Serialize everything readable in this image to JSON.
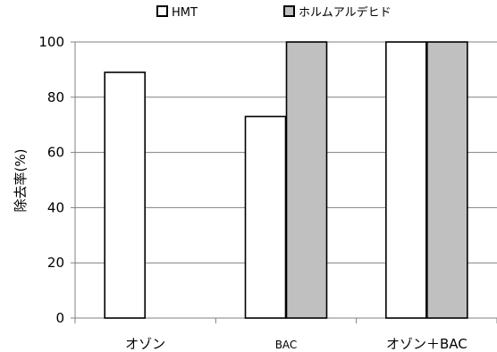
{
  "chart_data": {
    "type": "bar",
    "title": "",
    "xlabel": "",
    "ylabel": "除去率(%)",
    "categories": [
      "オゾン",
      "BAC",
      "オゾン＋BAC"
    ],
    "series": [
      {
        "name": "HMT",
        "values": [
          89,
          73,
          100
        ],
        "color": "#ffffff"
      },
      {
        "name": "ホルムアルデヒド",
        "values": [
          0,
          100,
          100
        ],
        "color": "#c0c0c0"
      }
    ],
    "ylim": [
      0,
      100
    ],
    "yticks": [
      0,
      20,
      40,
      60,
      80,
      100
    ],
    "grid": true,
    "legend_position": "top-center",
    "colors": {
      "bar_edge": "#000000",
      "grid": "#808080"
    }
  }
}
